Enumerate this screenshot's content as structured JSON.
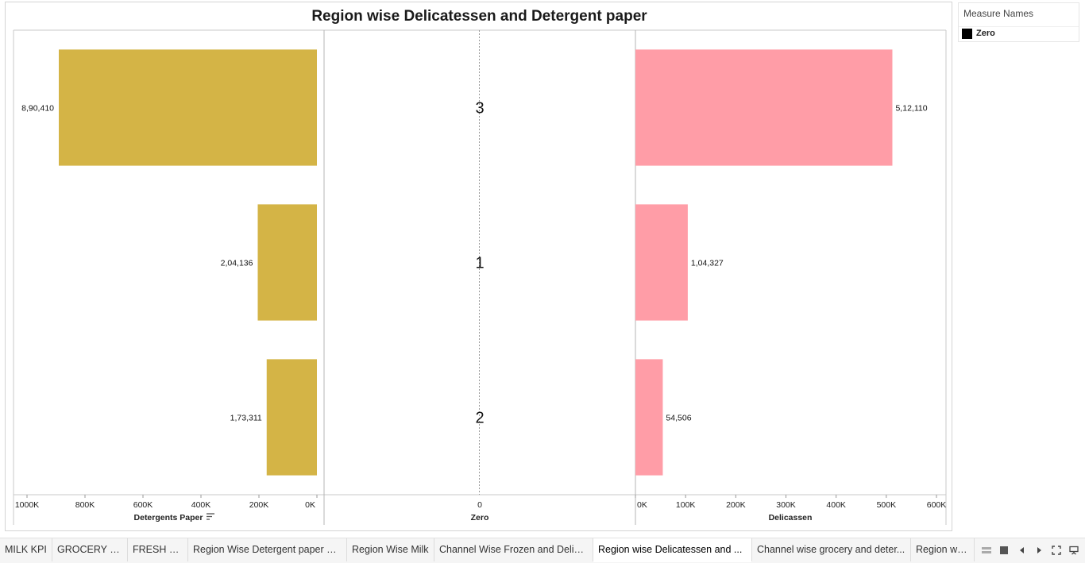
{
  "chart_data": {
    "type": "bar",
    "title": "Region wise Delicatessen and Detergent paper",
    "categories": [
      "3",
      "1",
      "2"
    ],
    "series": [
      {
        "name": "Detergents Paper",
        "values": [
          890410,
          204136,
          173311
        ],
        "value_labels": [
          "8,90,410",
          "2,04,136",
          "1,73,311"
        ],
        "color": "#d4b446",
        "direction": "reversed",
        "xlim": [
          0,
          1000000
        ],
        "ticks": [
          1000000,
          800000,
          600000,
          400000,
          200000,
          0
        ],
        "tick_labels": [
          "1000K",
          "800K",
          "600K",
          "400K",
          "200K",
          "0K"
        ],
        "xlabel": "Detergents Paper",
        "sorted": true
      },
      {
        "name": "Zero",
        "values": [
          0,
          0,
          0
        ],
        "ticks": [
          0
        ],
        "tick_labels": [
          "0"
        ],
        "xlabel": "Zero"
      },
      {
        "name": "Delicassen",
        "values": [
          512110,
          104327,
          54506
        ],
        "value_labels": [
          "5,12,110",
          "1,04,327",
          "54,506"
        ],
        "color": "#ff9da7",
        "direction": "normal",
        "xlim": [
          0,
          600000
        ],
        "ticks": [
          0,
          100000,
          200000,
          300000,
          400000,
          500000,
          600000
        ],
        "tick_labels": [
          "0K",
          "100K",
          "200K",
          "300K",
          "400K",
          "500K",
          "600K"
        ],
        "xlabel": "Delicassen"
      }
    ],
    "grid": false,
    "legend": "top-right"
  },
  "legend": {
    "title": "Measure Names",
    "items": [
      {
        "label": "Zero",
        "color": "#000000"
      }
    ]
  },
  "tabs": [
    {
      "label": "MILK KPI",
      "active": false
    },
    {
      "label": "GROCERY KPI",
      "active": false
    },
    {
      "label": "FRESH KPI",
      "active": false
    },
    {
      "label": "Region Wise Detergent paper an...",
      "active": false
    },
    {
      "label": "Region Wise Milk",
      "active": false
    },
    {
      "label": "Channel Wise Frozen and Delica...",
      "active": false
    },
    {
      "label": "Region wise Delicatessen and ...",
      "active": true
    },
    {
      "label": "Channel wise grocery and deter...",
      "active": false
    },
    {
      "label": "Region wise",
      "active": false
    }
  ],
  "nav_icons": [
    "grid-view-icon",
    "single-view-icon",
    "previous-icon",
    "next-icon",
    "fullscreen-icon",
    "present-icon"
  ]
}
